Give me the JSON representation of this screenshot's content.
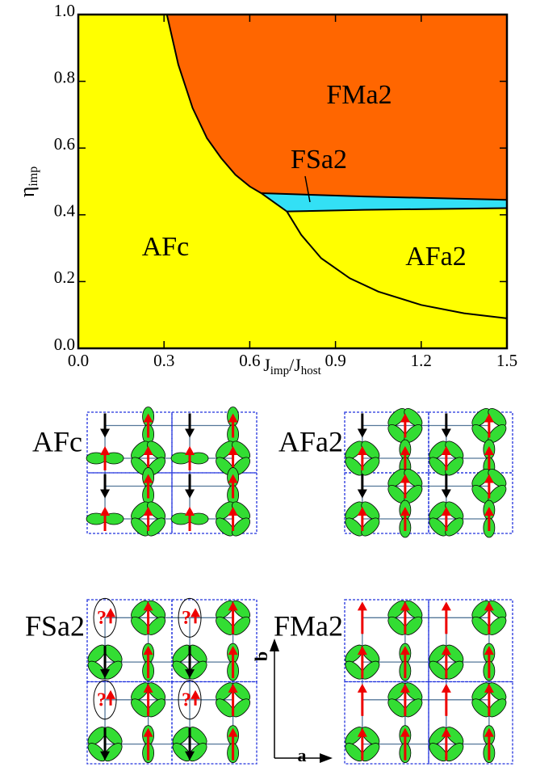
{
  "chart_data": {
    "type": "phase-diagram",
    "xlabel": [
      "J",
      "imp",
      "/J",
      "host"
    ],
    "ylabel": [
      "η",
      "imp"
    ],
    "xlim": [
      0,
      1.5
    ],
    "ylim": [
      0,
      1
    ],
    "xticks": [
      {
        "value": 0,
        "label": "0.0"
      },
      {
        "value": 0.3,
        "label": "0.3"
      },
      {
        "value": 0.6,
        "label": "0.6"
      },
      {
        "value": 0.9,
        "label": "0.9"
      },
      {
        "value": 1.2,
        "label": "1.2"
      },
      {
        "value": 1.5,
        "label": "1.5"
      }
    ],
    "yticks": [
      {
        "value": 0,
        "label": "0.0"
      },
      {
        "value": 0.2,
        "label": "0.2"
      },
      {
        "value": 0.4,
        "label": "0.4"
      },
      {
        "value": 0.6,
        "label": "0.6"
      },
      {
        "value": 0.8,
        "label": "0.8"
      },
      {
        "value": 1,
        "label": "1.0"
      }
    ],
    "regions": [
      {
        "name": "FMa2",
        "color": "#ff6600"
      },
      {
        "name": "FSa2",
        "color": "#33e0f5"
      },
      {
        "name": "AFc",
        "color": "#ffff00"
      },
      {
        "name": "AFa2",
        "color": "#ffff00"
      }
    ],
    "boundaries": [
      {
        "color": "#000000",
        "x": [
          0.31,
          0.35,
          0.4,
          0.45,
          0.5,
          0.55,
          0.6,
          0.64
        ],
        "y": [
          1.0,
          0.85,
          0.72,
          0.63,
          0.57,
          0.52,
          0.485,
          0.465
        ]
      },
      {
        "color": "#000000",
        "x": [
          0.64,
          1.0,
          1.5
        ],
        "y": [
          0.465,
          0.455,
          0.445
        ]
      },
      {
        "color": "#000000",
        "x": [
          0.64,
          0.73,
          1.0,
          1.5
        ],
        "y": [
          0.465,
          0.41,
          0.415,
          0.42
        ]
      },
      {
        "color": "#000000",
        "x": [
          0.73,
          0.78,
          0.85,
          0.95,
          1.05,
          1.2,
          1.35,
          1.5
        ],
        "y": [
          0.41,
          0.34,
          0.27,
          0.21,
          0.17,
          0.13,
          0.105,
          0.09
        ]
      }
    ]
  },
  "schematics": {
    "panels": [
      {
        "label": "AFc"
      },
      {
        "label": "AFa2"
      },
      {
        "label": "FSa2"
      },
      {
        "label": "FMa2"
      }
    ],
    "unknown_spin": "?",
    "axis_labels": {
      "a": "a",
      "b": "b"
    }
  }
}
